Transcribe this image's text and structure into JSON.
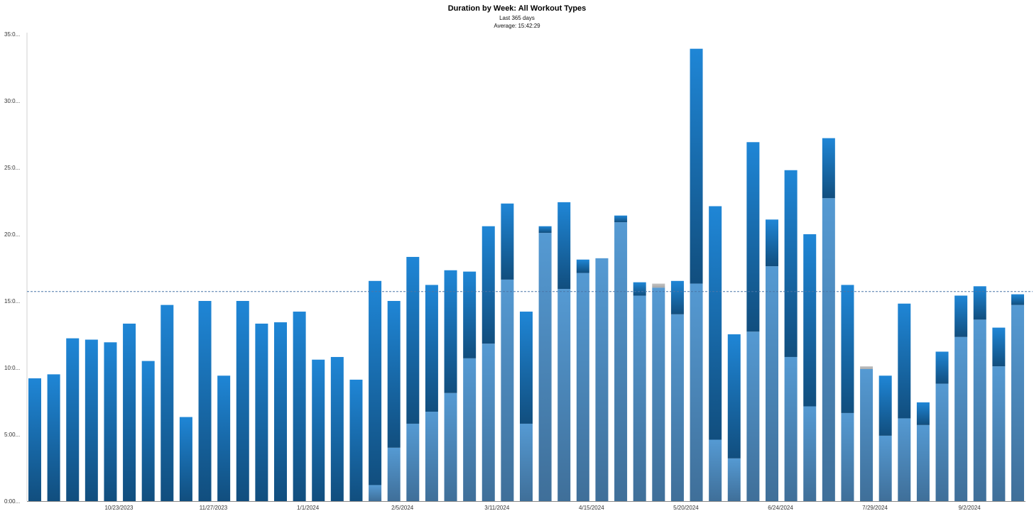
{
  "chart_data": {
    "type": "bar",
    "stacked": true,
    "title": "Duration by Week: All Workout Types",
    "subtitle": "Last 365 days",
    "annotation": "Average: 15:42:29",
    "average_hours": 15.708,
    "ylim": [
      0,
      35
    ],
    "yticks": [
      0,
      5,
      10,
      15,
      20,
      25,
      30,
      35
    ],
    "ytick_labels": [
      "0:00...",
      "5:00...",
      "10:0...",
      "15:0...",
      "20:0...",
      "25:0...",
      "30:0...",
      "35:0..."
    ],
    "xtick_labels": [
      {
        "index": 4,
        "label": "10/23/2023"
      },
      {
        "index": 9,
        "label": "11/27/2023"
      },
      {
        "index": 14,
        "label": "1/1/2024"
      },
      {
        "index": 19,
        "label": "2/5/2024"
      },
      {
        "index": 24,
        "label": "3/11/2024"
      },
      {
        "index": 29,
        "label": "4/15/2024"
      },
      {
        "index": 34,
        "label": "5/20/2024"
      },
      {
        "index": 39,
        "label": "6/24/2024"
      },
      {
        "index": 44,
        "label": "7/29/2024"
      },
      {
        "index": 49,
        "label": "9/2/2024"
      }
    ],
    "colors": {
      "light": "#4d8fc7",
      "dark": "#1573bf",
      "gray": "#b3b3b3",
      "average": "#4a76a8"
    },
    "series": [
      {
        "key": "light",
        "values": [
          0,
          0,
          0,
          0,
          0,
          0,
          0,
          0,
          0,
          0,
          0,
          0,
          0,
          0,
          0,
          0,
          0,
          0,
          1.2,
          4.0,
          5.8,
          6.7,
          8.1,
          10.7,
          11.8,
          16.6,
          5.8,
          20.1,
          15.9,
          17.1,
          18.2,
          20.9,
          15.4,
          16.0,
          14.0,
          16.3,
          4.6,
          3.2,
          12.7,
          17.6,
          10.8,
          7.1,
          22.7,
          6.6,
          9.9,
          4.9,
          6.2,
          5.7,
          8.8,
          12.3,
          13.6,
          10.1,
          14.7
        ]
      },
      {
        "key": "dark",
        "values": [
          9.2,
          9.5,
          12.2,
          12.1,
          11.9,
          13.3,
          10.5,
          14.7,
          6.3,
          15.0,
          9.4,
          15.0,
          13.3,
          13.4,
          14.2,
          10.6,
          10.8,
          9.1,
          15.3,
          11.0,
          12.5,
          9.5,
          9.2,
          6.5,
          8.8,
          5.7,
          8.4,
          0.5,
          6.5,
          1.0,
          0,
          0.5,
          1.0,
          0,
          2.5,
          17.6,
          17.5,
          9.3,
          14.2,
          3.5,
          14.0,
          12.9,
          4.5,
          9.6,
          0,
          4.5,
          8.6,
          1.7,
          2.4,
          3.1,
          2.5,
          2.9,
          0.8
        ]
      },
      {
        "key": "gray",
        "values": [
          0,
          0,
          0,
          0,
          0,
          0,
          0,
          0,
          0,
          0,
          0,
          0,
          0,
          0,
          0,
          0,
          0,
          0,
          0,
          0,
          0,
          0,
          0,
          0,
          0,
          0,
          0,
          0,
          0,
          0,
          0,
          0,
          0,
          0.3,
          0,
          0,
          0,
          0,
          0,
          0,
          0,
          0,
          0,
          0,
          0.2,
          0,
          0,
          0,
          0,
          0,
          0,
          0,
          0
        ]
      }
    ]
  }
}
